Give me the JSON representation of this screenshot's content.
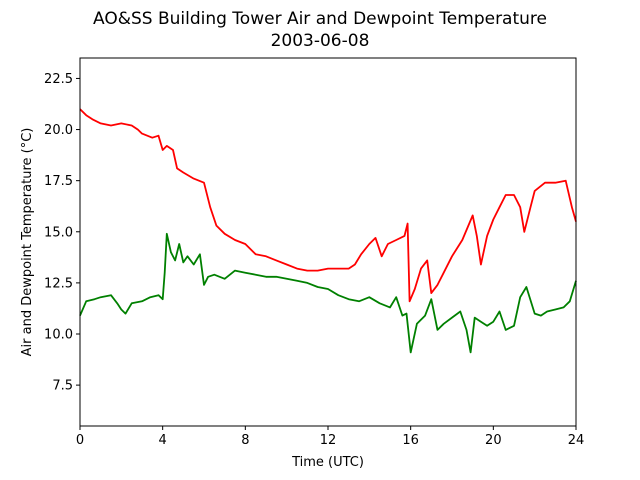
{
  "chart_data": {
    "type": "line",
    "title": "AO&SS Building Tower Air and Dewpoint Temperature",
    "subtitle": "2003-06-08",
    "xlabel": "Time (UTC)",
    "ylabel": "Air and Dewpoint Temperature (°C)",
    "xlim": [
      0,
      24
    ],
    "ylim": [
      5.5,
      23.5
    ],
    "xticks": [
      "0",
      "4",
      "8",
      "12",
      "16",
      "20",
      "24"
    ],
    "yticks": [
      "7.5",
      "10.0",
      "12.5",
      "15.0",
      "17.5",
      "20.0",
      "22.5"
    ],
    "grid": false,
    "series": [
      {
        "color": "#ff0000",
        "x": [
          0,
          0.3,
          0.6,
          1,
          1.5,
          2,
          2.5,
          2.8,
          3,
          3.5,
          3.8,
          4,
          4.2,
          4.5,
          4.7,
          5,
          5.5,
          6,
          6.3,
          6.6,
          7,
          7.5,
          8,
          8.5,
          9,
          9.5,
          10,
          10.5,
          11,
          11.5,
          12,
          12.5,
          13,
          13.3,
          13.6,
          14,
          14.3,
          14.6,
          14.9,
          15.3,
          15.7,
          15.85,
          15.95,
          16.2,
          16.5,
          16.8,
          17,
          17.3,
          17.6,
          18,
          18.5,
          19,
          19.2,
          19.4,
          19.7,
          20,
          20.3,
          20.6,
          21,
          21.3,
          21.5,
          21.8,
          22,
          22.5,
          23,
          23.5,
          23.8,
          24
        ],
        "y": [
          21.0,
          20.7,
          20.5,
          20.3,
          20.2,
          20.3,
          20.2,
          20.0,
          19.8,
          19.6,
          19.7,
          19.0,
          19.2,
          19.0,
          18.1,
          17.9,
          17.6,
          17.4,
          16.2,
          15.3,
          14.9,
          14.6,
          14.4,
          13.9,
          13.8,
          13.6,
          13.4,
          13.2,
          13.1,
          13.1,
          13.2,
          13.2,
          13.2,
          13.4,
          13.9,
          14.4,
          14.7,
          13.8,
          14.4,
          14.6,
          14.8,
          15.4,
          11.6,
          12.2,
          13.2,
          13.6,
          12.0,
          12.4,
          13.0,
          13.8,
          14.6,
          15.8,
          14.8,
          13.4,
          14.8,
          15.6,
          16.2,
          16.8,
          16.8,
          16.2,
          15.0,
          16.2,
          17.0,
          17.4,
          17.4,
          17.5,
          16.2,
          15.5
        ]
      },
      {
        "color": "#008000",
        "x": [
          0,
          0.3,
          0.7,
          1,
          1.5,
          1.8,
          2,
          2.2,
          2.5,
          3,
          3.4,
          3.8,
          4,
          4.1,
          4.2,
          4.4,
          4.6,
          4.8,
          5,
          5.2,
          5.5,
          5.8,
          6,
          6.2,
          6.5,
          7,
          7.5,
          8,
          8.5,
          9,
          9.5,
          10,
          10.5,
          11,
          11.5,
          12,
          12.5,
          13,
          13.5,
          14,
          14.5,
          15,
          15.3,
          15.6,
          15.8,
          16.0,
          16.3,
          16.7,
          17,
          17.3,
          17.6,
          18,
          18.4,
          18.7,
          18.9,
          19.1,
          19.4,
          19.7,
          20,
          20.3,
          20.6,
          21,
          21.3,
          21.6,
          22,
          22.3,
          22.6,
          23,
          23.4,
          23.7,
          24
        ],
        "y": [
          10.9,
          11.6,
          11.7,
          11.8,
          11.9,
          11.5,
          11.2,
          11.0,
          11.5,
          11.6,
          11.8,
          11.9,
          11.7,
          13.0,
          14.9,
          14.0,
          13.6,
          14.4,
          13.5,
          13.8,
          13.4,
          13.9,
          12.4,
          12.8,
          12.9,
          12.7,
          13.1,
          13.0,
          12.9,
          12.8,
          12.8,
          12.7,
          12.6,
          12.5,
          12.3,
          12.2,
          11.9,
          11.7,
          11.6,
          11.8,
          11.5,
          11.3,
          11.8,
          10.9,
          11.0,
          9.1,
          10.5,
          10.9,
          11.7,
          10.2,
          10.5,
          10.8,
          11.1,
          10.2,
          9.1,
          10.8,
          10.6,
          10.4,
          10.6,
          11.1,
          10.2,
          10.4,
          11.8,
          12.3,
          11.0,
          10.9,
          11.1,
          11.2,
          11.3,
          11.6,
          12.6
        ]
      }
    ]
  }
}
